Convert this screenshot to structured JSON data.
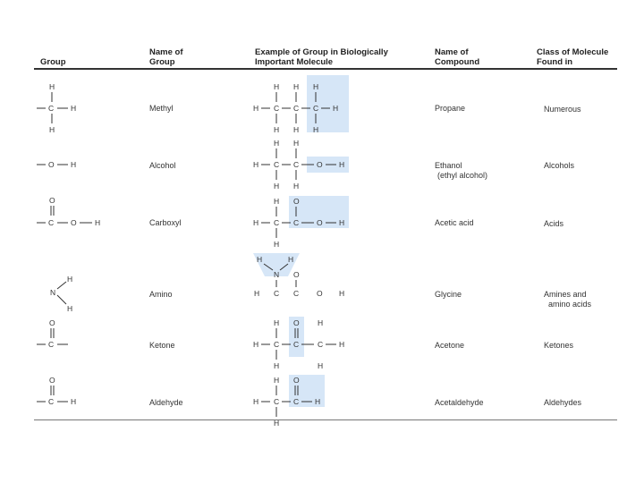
{
  "header": {
    "group": "Group",
    "name_of_group": [
      "Name of",
      "Group"
    ],
    "example": [
      "Example of Group in Biologically",
      "Important Molecule"
    ],
    "name_of_compound": [
      "Name of",
      "Compound"
    ],
    "class_of_molecule": [
      "Class of Molecule",
      "Found in"
    ]
  },
  "rows": [
    {
      "group_name": "Methyl",
      "compound": [
        "Propane"
      ],
      "class": [
        "Numerous"
      ]
    },
    {
      "group_name": "Alcohol",
      "compound": [
        "Ethanol",
        "(ethyl alcohol)"
      ],
      "class": [
        "Alcohols"
      ]
    },
    {
      "group_name": "Carboxyl",
      "compound": [
        "Acetic acid"
      ],
      "class": [
        "Acids"
      ]
    },
    {
      "group_name": "Amino",
      "compound": [
        "Glycine"
      ],
      "class": [
        "Amines and",
        "amino acids"
      ]
    },
    {
      "group_name": "Ketone",
      "compound": [
        "Acetone"
      ],
      "class": [
        "Ketones"
      ]
    },
    {
      "group_name": "Aldehyde",
      "compound": [
        "Acetaldehyde"
      ],
      "class": [
        "Aldehydes"
      ]
    }
  ],
  "highlight_color": "#d6e6f7"
}
